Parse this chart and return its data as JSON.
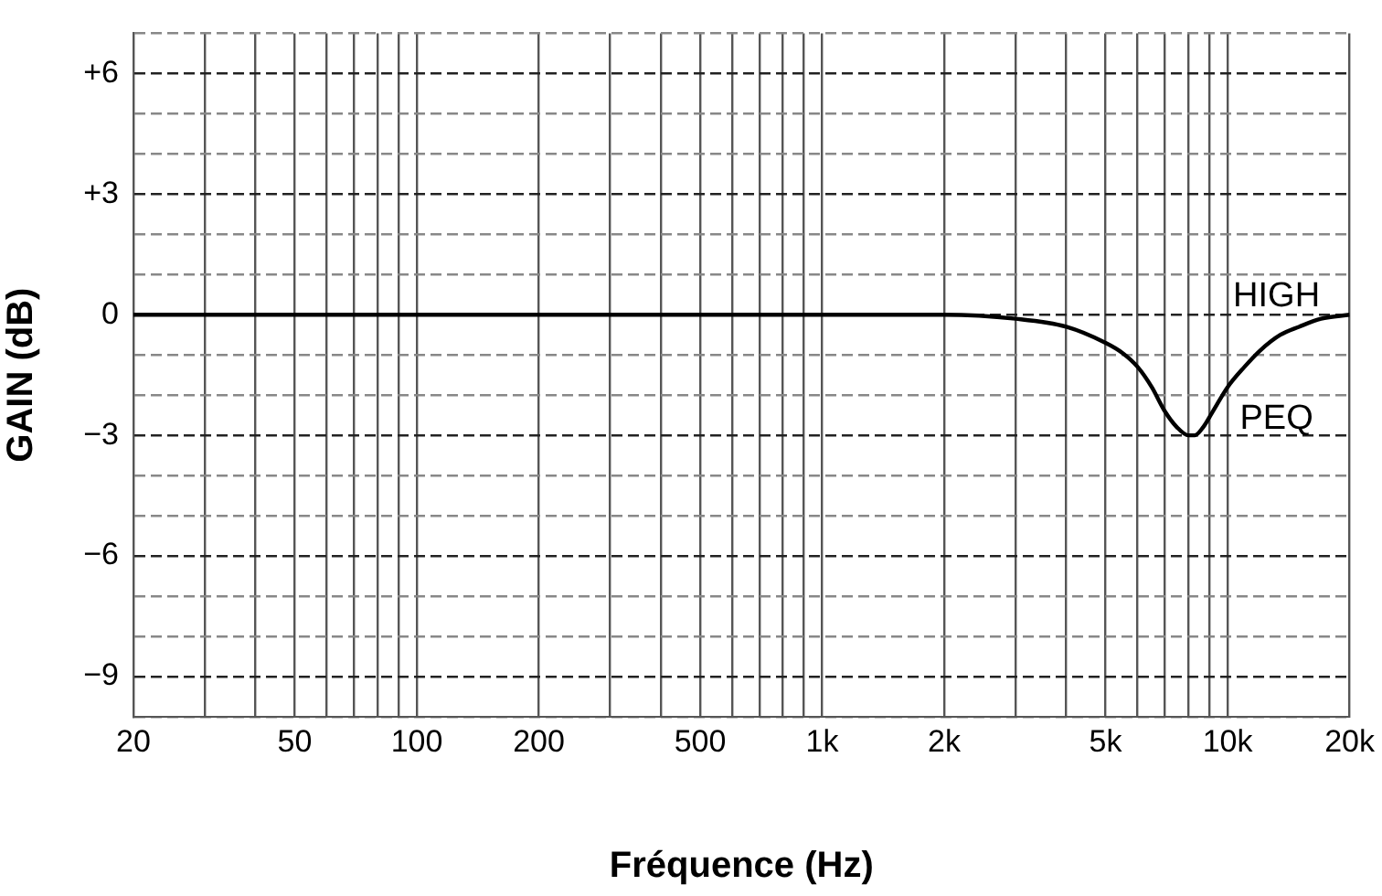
{
  "chart_data": {
    "type": "line",
    "xlabel": "Fréquence (Hz)",
    "ylabel": "GAIN (dB)",
    "log": "x",
    "grid": true,
    "legend": false,
    "marker": "none",
    "line_style": "solid",
    "xlim": [
      20,
      20000
    ],
    "ylim": [
      -10,
      7
    ],
    "xticks": [
      20,
      {
        "value": 30,
        "label": null
      },
      {
        "value": 40,
        "label": null
      },
      50,
      {
        "value": 60,
        "label": null
      },
      {
        "value": 70,
        "label": null
      },
      {
        "value": 80,
        "label": null
      },
      {
        "value": 90,
        "label": null
      },
      100,
      200,
      {
        "value": 300,
        "label": null
      },
      {
        "value": 400,
        "label": null
      },
      500,
      {
        "value": 600,
        "label": null
      },
      {
        "value": 700,
        "label": null
      },
      {
        "value": 800,
        "label": null
      },
      {
        "value": 900,
        "label": null
      },
      {
        "value": 1000,
        "label": "1k"
      },
      {
        "value": 2000,
        "label": "2k"
      },
      {
        "value": 3000,
        "label": null
      },
      {
        "value": 4000,
        "label": null
      },
      {
        "value": 5000,
        "label": "5k"
      },
      {
        "value": 6000,
        "label": null
      },
      {
        "value": 7000,
        "label": null
      },
      {
        "value": 8000,
        "label": null
      },
      {
        "value": 9000,
        "label": null
      },
      {
        "value": 10000,
        "label": "10k"
      },
      {
        "value": 20000,
        "label": "20k"
      }
    ],
    "yticks": [
      {
        "value": -10,
        "label": null
      },
      {
        "value": -9,
        "label": "−9"
      },
      {
        "value": -8,
        "label": null
      },
      {
        "value": -7,
        "label": null
      },
      {
        "value": -6,
        "label": "−6"
      },
      {
        "value": -5,
        "label": null
      },
      {
        "value": -4,
        "label": null
      },
      {
        "value": -3,
        "label": "−3"
      },
      {
        "value": -2,
        "label": null
      },
      {
        "value": -1,
        "label": null
      },
      0,
      {
        "value": 1,
        "label": null
      },
      {
        "value": 2,
        "label": null
      },
      {
        "value": 3,
        "label": "+3"
      },
      {
        "value": 4,
        "label": null
      },
      {
        "value": 5,
        "label": null
      },
      {
        "value": 6,
        "label": "+6"
      },
      {
        "value": 7,
        "label": null
      }
    ],
    "series": [
      {
        "color": "#000000",
        "x": [
          20,
          100,
          500,
          1000,
          2000,
          3000,
          4000,
          5000,
          5500,
          6000,
          6500,
          7000,
          7500,
          8000,
          8300,
          8700,
          9200,
          10000,
          11000,
          12000,
          13500,
          15000,
          17000,
          20000
        ],
        "values": [
          0,
          0,
          0,
          0,
          0,
          -0.1,
          -0.3,
          -0.7,
          -0.95,
          -1.3,
          -1.8,
          -2.4,
          -2.8,
          -3,
          -3,
          -2.8,
          -2.4,
          -1.8,
          -1.3,
          -0.9,
          -0.5,
          -0.3,
          -0.1,
          0
        ]
      }
    ],
    "annotations": [
      "HIGH",
      "PEQ"
    ]
  }
}
